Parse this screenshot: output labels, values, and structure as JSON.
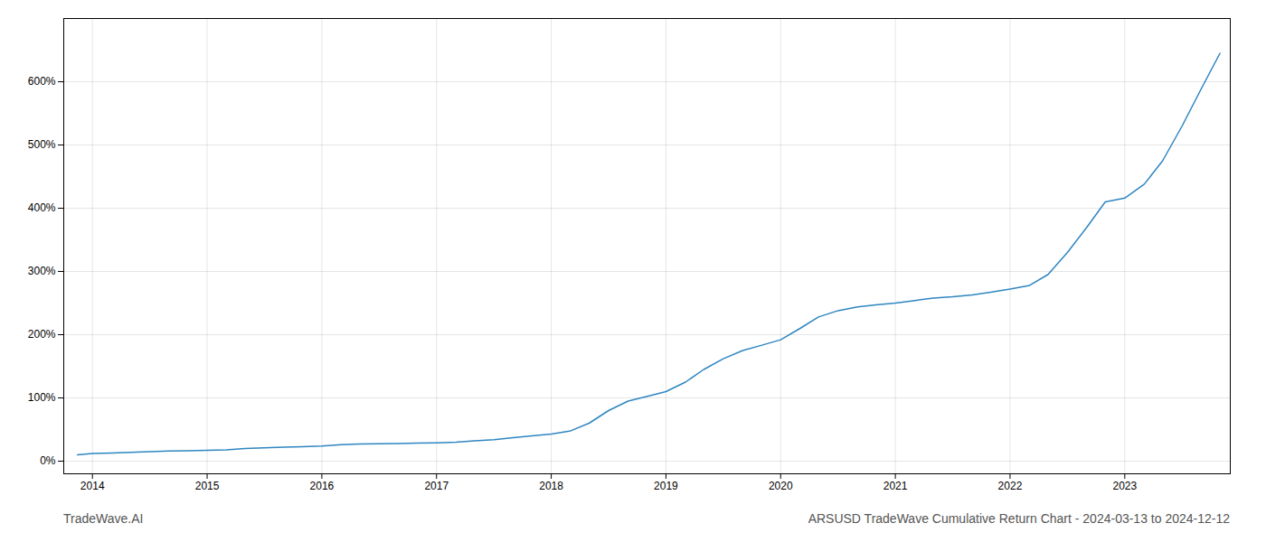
{
  "chart_data": {
    "type": "line",
    "title": "ARSUSD TradeWave Cumulative Return Chart - 2024-03-13 to 2024-12-12",
    "annotations": [
      "TradeWave.AI"
    ],
    "color": "#2e86c1",
    "grid": true,
    "x": [
      2013.87,
      2014.0,
      2014.17,
      2014.33,
      2014.5,
      2014.67,
      2014.83,
      2015.0,
      2015.17,
      2015.33,
      2015.5,
      2015.67,
      2015.83,
      2016.0,
      2016.17,
      2016.33,
      2016.5,
      2016.67,
      2016.83,
      2017.0,
      2017.17,
      2017.33,
      2017.5,
      2017.67,
      2017.83,
      2018.0,
      2018.17,
      2018.33,
      2018.5,
      2018.67,
      2018.83,
      2019.0,
      2019.17,
      2019.33,
      2019.5,
      2019.67,
      2019.83,
      2020.0,
      2020.17,
      2020.33,
      2020.5,
      2020.67,
      2020.83,
      2021.0,
      2021.17,
      2021.33,
      2021.5,
      2021.67,
      2021.83,
      2022.0,
      2022.17,
      2022.33,
      2022.5,
      2022.67,
      2022.83,
      2023.0,
      2023.17,
      2023.33,
      2023.5,
      2023.67,
      2023.83
    ],
    "values": [
      10,
      12,
      13,
      14,
      15,
      16,
      16.5,
      17,
      18,
      20,
      21,
      22,
      23,
      24,
      26,
      27,
      27.5,
      28,
      28.5,
      29,
      30,
      32,
      34,
      37,
      40,
      43,
      48,
      60,
      80,
      95,
      102,
      110,
      125,
      145,
      162,
      175,
      183,
      192,
      210,
      228,
      238,
      244,
      247,
      250,
      254,
      258,
      260,
      263,
      267,
      272,
      278,
      295,
      330,
      370,
      410,
      416,
      438,
      475,
      530,
      590,
      645
    ],
    "xlim": [
      2013.75,
      2023.92
    ],
    "xticks": [
      2014,
      2015,
      2016,
      2017,
      2018,
      2019,
      2020,
      2021,
      2022,
      2023
    ],
    "ylim": [
      -20,
      700
    ],
    "yticks": [
      {
        "value": 0,
        "label": "0%"
      },
      {
        "value": 100,
        "label": "100%"
      },
      {
        "value": 200,
        "label": "200%"
      },
      {
        "value": 300,
        "label": "300%"
      },
      {
        "value": 400,
        "label": "400%"
      },
      {
        "value": 500,
        "label": "500%"
      },
      {
        "value": 600,
        "label": "600%"
      }
    ]
  }
}
